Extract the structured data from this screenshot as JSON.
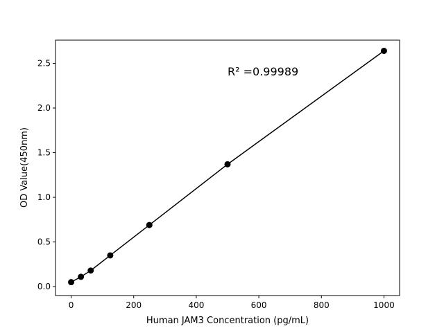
{
  "chart_data": {
    "type": "line",
    "title": "",
    "xlabel": "Human JAM3 Concentration (pg/mL)",
    "ylabel": "OD Value(450nm)",
    "xlim": [
      -50,
      1050
    ],
    "ylim": [
      -0.1,
      2.76
    ],
    "xticks": [
      0,
      200,
      400,
      600,
      800,
      1000
    ],
    "yticks": [
      0.0,
      0.5,
      1.0,
      1.5,
      2.0,
      2.5
    ],
    "xtick_labels": [
      "0",
      "200",
      "400",
      "600",
      "800",
      "1000"
    ],
    "ytick_labels": [
      "0.0",
      "0.5",
      "1.0",
      "1.5",
      "2.0",
      "2.5"
    ],
    "grid": false,
    "series": [
      {
        "x": [
          0,
          31.25,
          62.5,
          125,
          250,
          500,
          1000
        ],
        "y": [
          0.05,
          0.11,
          0.18,
          0.35,
          0.69,
          1.37,
          2.64
        ],
        "color": "#000000",
        "marker": "circle"
      }
    ],
    "annotation": "R² =0.99989"
  }
}
